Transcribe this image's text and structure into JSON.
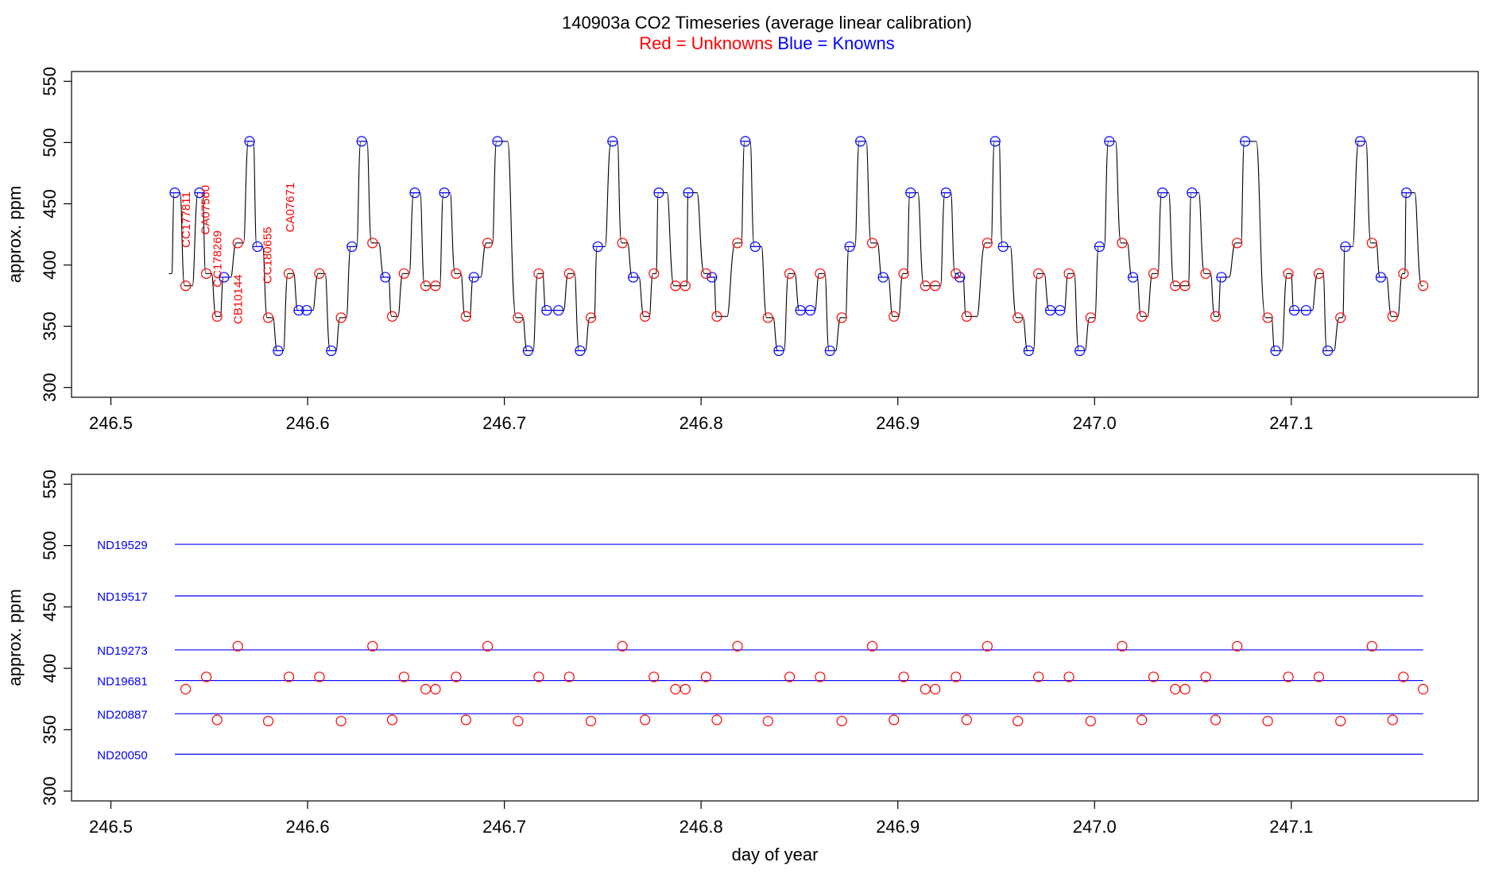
{
  "title": "140903a   CO2 Timeseries (average linear calibration)",
  "subtitle": {
    "red_text": "Red = Unknowns",
    "blue_text": "Blue = Knowns"
  },
  "colors": {
    "unknown": "#ff0000",
    "known": "#0000ff",
    "line": "#000000",
    "reference_line": "#0000ff"
  },
  "chart_data": [
    {
      "type": "line",
      "panel": "top",
      "ylabel": "approx. ppm",
      "xlabel": "",
      "xlim": [
        246.48,
        247.195
      ],
      "ylim": [
        292,
        558
      ],
      "xticks": [
        "246.5",
        "246.6",
        "246.7",
        "246.8",
        "246.9",
        "247.0",
        "247.1"
      ],
      "xtick_values": [
        246.5,
        246.6,
        246.7,
        246.8,
        246.9,
        247.0,
        247.1
      ],
      "yticks": [
        "300",
        "350",
        "400",
        "450",
        "500",
        "550"
      ],
      "ytick_values": [
        300,
        350,
        400,
        450,
        500,
        550
      ],
      "start_point": [
        246.5295,
        393
      ],
      "series": [
        {
          "name": "Blue = Knowns",
          "points": [
            [
              246.5325,
              459
            ],
            [
              246.545,
              459
            ],
            [
              246.5575,
              390
            ],
            [
              246.5705,
              501
            ],
            [
              246.5745,
              415
            ],
            [
              246.585,
              330
            ],
            [
              246.5955,
              363
            ],
            [
              246.5995,
              363
            ],
            [
              246.612,
              330
            ],
            [
              246.6225,
              415
            ],
            [
              246.6275,
              501
            ],
            [
              246.6395,
              390
            ],
            [
              246.6545,
              459
            ],
            [
              246.6695,
              459
            ],
            [
              246.6845,
              390
            ],
            [
              246.6965,
              501
            ],
            [
              246.712,
              330
            ],
            [
              246.7215,
              363
            ],
            [
              246.7275,
              363
            ],
            [
              246.7385,
              330
            ],
            [
              246.7475,
              415
            ],
            [
              246.755,
              501
            ],
            [
              246.7655,
              390
            ],
            [
              246.7785,
              459
            ],
            [
              246.7935,
              459
            ],
            [
              246.8055,
              390
            ],
            [
              246.8225,
              501
            ],
            [
              246.8275,
              415
            ],
            [
              246.8395,
              330
            ],
            [
              246.8505,
              363
            ],
            [
              246.8555,
              363
            ],
            [
              246.8655,
              330
            ],
            [
              246.8755,
              415
            ],
            [
              246.881,
              501
            ],
            [
              246.8925,
              390
            ],
            [
              246.9065,
              459
            ],
            [
              246.9245,
              459
            ],
            [
              246.9315,
              390
            ],
            [
              246.9495,
              501
            ],
            [
              246.9535,
              415
            ],
            [
              246.9665,
              330
            ],
            [
              246.9775,
              363
            ],
            [
              246.9825,
              363
            ],
            [
              246.9925,
              330
            ],
            [
              247.0025,
              415
            ],
            [
              247.0075,
              501
            ],
            [
              247.0195,
              390
            ],
            [
              247.0345,
              459
            ],
            [
              247.0495,
              459
            ],
            [
              247.0645,
              390
            ],
            [
              247.0765,
              501
            ],
            [
              247.092,
              330
            ],
            [
              247.1015,
              363
            ],
            [
              247.1075,
              363
            ],
            [
              247.1185,
              330
            ],
            [
              247.1275,
              415
            ],
            [
              247.135,
              501
            ],
            [
              247.1455,
              390
            ],
            [
              247.1585,
              459
            ]
          ]
        },
        {
          "name": "Red = Unknowns",
          "points": [
            [
              246.538,
              383
            ],
            [
              246.5485,
              393
            ],
            [
              246.554,
              358
            ],
            [
              246.5645,
              418
            ],
            [
              246.58,
              357
            ],
            [
              246.5905,
              393
            ],
            [
              246.606,
              393
            ],
            [
              246.617,
              357
            ],
            [
              246.633,
              418
            ],
            [
              246.643,
              358
            ],
            [
              246.649,
              393
            ],
            [
              246.66,
              383
            ],
            [
              246.665,
              383
            ],
            [
              246.6755,
              393
            ],
            [
              246.6805,
              358
            ],
            [
              246.6915,
              418
            ],
            [
              246.707,
              357
            ],
            [
              246.7175,
              393
            ],
            [
              246.733,
              393
            ],
            [
              246.744,
              357
            ],
            [
              246.76,
              418
            ],
            [
              246.7715,
              358
            ],
            [
              246.776,
              393
            ],
            [
              246.787,
              383
            ],
            [
              246.792,
              383
            ],
            [
              246.8025,
              393
            ],
            [
              246.808,
              358
            ],
            [
              246.8185,
              418
            ],
            [
              246.834,
              357
            ],
            [
              246.845,
              393
            ],
            [
              246.8605,
              393
            ],
            [
              246.8715,
              357
            ],
            [
              246.887,
              418
            ],
            [
              246.898,
              358
            ],
            [
              246.903,
              393
            ],
            [
              246.914,
              383
            ],
            [
              246.919,
              383
            ],
            [
              246.9295,
              393
            ],
            [
              246.935,
              358
            ],
            [
              246.9455,
              418
            ],
            [
              246.961,
              357
            ],
            [
              246.9715,
              393
            ],
            [
              246.987,
              393
            ],
            [
              246.998,
              357
            ],
            [
              247.014,
              418
            ],
            [
              247.024,
              358
            ],
            [
              247.03,
              393
            ],
            [
              247.041,
              383
            ],
            [
              247.046,
              383
            ],
            [
              247.0565,
              393
            ],
            [
              247.0615,
              358
            ],
            [
              247.0725,
              418
            ],
            [
              247.088,
              357
            ],
            [
              247.0985,
              393
            ],
            [
              247.114,
              393
            ],
            [
              247.125,
              357
            ],
            [
              247.141,
              418
            ],
            [
              247.1515,
              358
            ],
            [
              247.157,
              393
            ],
            [
              247.167,
              383
            ]
          ]
        }
      ],
      "annotations": [
        {
          "text": "CC177811",
          "x": 246.5385,
          "y": 437
        },
        {
          "text": "CA07560",
          "x": 246.5485,
          "y": 445
        },
        {
          "text": "CC178269",
          "x": 246.5545,
          "y": 405
        },
        {
          "text": "CB10144",
          "x": 246.565,
          "y": 372
        },
        {
          "text": "CC180655",
          "x": 246.58,
          "y": 408
        },
        {
          "text": "CA07671",
          "x": 246.5915,
          "y": 447
        }
      ]
    },
    {
      "type": "scatter",
      "panel": "bottom",
      "ylabel": "approx. ppm",
      "xlabel": "day of year",
      "xlim": [
        246.48,
        247.195
      ],
      "ylim": [
        292,
        558
      ],
      "xticks": [
        "246.5",
        "246.6",
        "246.7",
        "246.8",
        "246.9",
        "247.0",
        "247.1"
      ],
      "xtick_values": [
        246.5,
        246.6,
        246.7,
        246.8,
        246.9,
        247.0,
        247.1
      ],
      "yticks": [
        "300",
        "350",
        "400",
        "450",
        "500",
        "550"
      ],
      "ytick_values": [
        300,
        350,
        400,
        450,
        500,
        550
      ],
      "reference_lines": [
        {
          "name": "ND19529",
          "value": 501,
          "x_start": 246.5325,
          "x_end": 247.167
        },
        {
          "name": "ND19517",
          "value": 459,
          "x_start": 246.5325,
          "x_end": 247.167
        },
        {
          "name": "ND19273",
          "value": 415,
          "x_start": 246.5325,
          "x_end": 247.167
        },
        {
          "name": "ND19681",
          "value": 390,
          "x_start": 246.5325,
          "x_end": 247.167
        },
        {
          "name": "ND20887",
          "value": 363,
          "x_start": 246.5325,
          "x_end": 247.167
        },
        {
          "name": "ND20050",
          "value": 330,
          "x_start": 246.5325,
          "x_end": 247.167
        }
      ],
      "points_ref": "Red = Unknowns"
    }
  ]
}
